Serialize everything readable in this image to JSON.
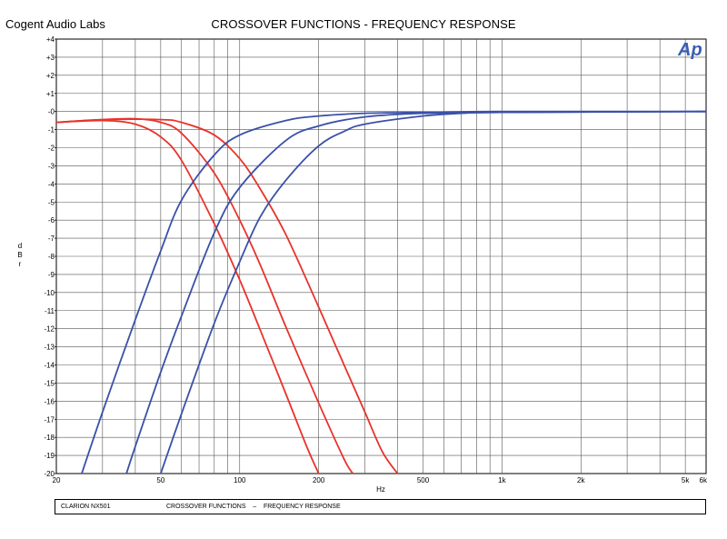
{
  "header": {
    "company": "Cogent Audio Labs",
    "title": "CROSSOVER FUNCTIONS   -  FREQUENCY RESPONSE",
    "logo_text": "Ap"
  },
  "caption": {
    "model": "CLARION NX501",
    "title": "CROSSOVER FUNCTIONS    –    FREQUENCY RESPONSE"
  },
  "colors": {
    "highpass": "#3a50a8",
    "lowpass": "#e8332a",
    "grid": "#555555",
    "logo": "#3a5fb0"
  },
  "chart_data": {
    "type": "line",
    "x_scale": "log",
    "xlim": [
      20,
      6000
    ],
    "ylim": [
      -20,
      4
    ],
    "xlabel": "Hz",
    "ylabel": "dBr",
    "x_tick_labels": [
      {
        "x": 20,
        "label": "20"
      },
      {
        "x": 50,
        "label": "50"
      },
      {
        "x": 100,
        "label": "100"
      },
      {
        "x": 200,
        "label": "200"
      },
      {
        "x": 500,
        "label": "500"
      },
      {
        "x": 1000,
        "label": "1k"
      },
      {
        "x": 2000,
        "label": "2k"
      },
      {
        "x": 5000,
        "label": "5k"
      },
      {
        "x": 6000,
        "label": "6k"
      }
    ],
    "y_tick_labels": [
      "+4",
      "+3",
      "+2",
      "+1",
      "-0",
      "-1",
      "-2",
      "-3",
      "-4",
      "-5",
      "-6",
      "-7",
      "-8",
      "-9",
      "-10",
      "-11",
      "-12",
      "-13",
      "-14",
      "-15",
      "-16",
      "-17",
      "-18",
      "-19",
      "-20"
    ],
    "grid": true,
    "series": [
      {
        "group": "lowpass",
        "points": [
          [
            20,
            -0.6
          ],
          [
            30,
            -0.5
          ],
          [
            40,
            -0.7
          ],
          [
            50,
            -1.4
          ],
          [
            60,
            -2.7
          ],
          [
            80,
            -6.2
          ],
          [
            100,
            -9.3
          ],
          [
            120,
            -12.1
          ],
          [
            150,
            -15.6
          ],
          [
            180,
            -18.5
          ],
          [
            200,
            -20
          ]
        ]
      },
      {
        "group": "lowpass",
        "points": [
          [
            20,
            -0.6
          ],
          [
            30,
            -0.45
          ],
          [
            40,
            -0.4
          ],
          [
            50,
            -0.6
          ],
          [
            60,
            -1.2
          ],
          [
            80,
            -3.4
          ],
          [
            100,
            -6.0
          ],
          [
            120,
            -8.5
          ],
          [
            150,
            -11.9
          ],
          [
            200,
            -16.1
          ],
          [
            250,
            -19.2
          ],
          [
            270,
            -20
          ]
        ]
      },
      {
        "group": "lowpass",
        "points": [
          [
            20,
            -0.6
          ],
          [
            30,
            -0.45
          ],
          [
            50,
            -0.45
          ],
          [
            60,
            -0.6
          ],
          [
            80,
            -1.3
          ],
          [
            100,
            -2.6
          ],
          [
            120,
            -4.3
          ],
          [
            150,
            -6.8
          ],
          [
            200,
            -10.8
          ],
          [
            250,
            -14.0
          ],
          [
            300,
            -16.6
          ],
          [
            350,
            -18.8
          ],
          [
            400,
            -20
          ]
        ]
      },
      {
        "group": "highpass",
        "points": [
          [
            25,
            -20
          ],
          [
            30,
            -16.6
          ],
          [
            40,
            -11.5
          ],
          [
            50,
            -7.7
          ],
          [
            60,
            -4.9
          ],
          [
            80,
            -2.4
          ],
          [
            100,
            -1.3
          ],
          [
            150,
            -0.5
          ],
          [
            200,
            -0.25
          ],
          [
            300,
            -0.1
          ],
          [
            500,
            -0.05
          ],
          [
            1000,
            0
          ],
          [
            6000,
            0
          ]
        ]
      },
      {
        "group": "highpass",
        "points": [
          [
            37,
            -20
          ],
          [
            40,
            -18.5
          ],
          [
            50,
            -14.4
          ],
          [
            60,
            -11.3
          ],
          [
            80,
            -6.7
          ],
          [
            100,
            -4.2
          ],
          [
            150,
            -1.6
          ],
          [
            200,
            -0.8
          ],
          [
            300,
            -0.3
          ],
          [
            500,
            -0.1
          ],
          [
            1000,
            -0.05
          ],
          [
            6000,
            0
          ]
        ]
      },
      {
        "group": "highpass",
        "points": [
          [
            50,
            -20
          ],
          [
            60,
            -16.7
          ],
          [
            80,
            -11.7
          ],
          [
            100,
            -8.3
          ],
          [
            120,
            -5.8
          ],
          [
            150,
            -3.8
          ],
          [
            200,
            -1.9
          ],
          [
            250,
            -1.1
          ],
          [
            300,
            -0.7
          ],
          [
            500,
            -0.25
          ],
          [
            700,
            -0.1
          ],
          [
            1000,
            -0.05
          ],
          [
            6000,
            0
          ]
        ]
      }
    ]
  }
}
